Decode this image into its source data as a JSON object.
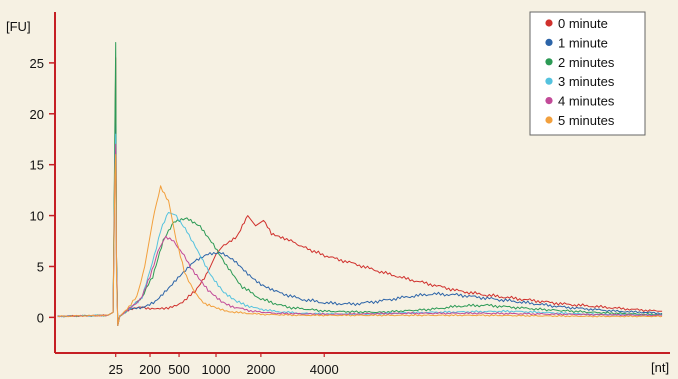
{
  "chart_data": {
    "type": "line",
    "title": "",
    "ylabel": "[FU]",
    "xlabel": "[nt]",
    "ylim": [
      -3.5,
      30
    ],
    "xlim": [
      -2.3,
      21
    ],
    "y_ticks": [
      0,
      5,
      10,
      15,
      20,
      25
    ],
    "x_ticks": [
      {
        "label": "25",
        "pos": 0.0
      },
      {
        "label": "200",
        "pos": 1.3
      },
      {
        "label": "500",
        "pos": 2.4
      },
      {
        "label": "1000",
        "pos": 3.8
      },
      {
        "label": "2000",
        "pos": 5.5
      },
      {
        "label": "4000",
        "pos": 7.9
      }
    ],
    "grid": false,
    "legend": "top-right",
    "series": [
      {
        "name": "0 minute",
        "color": "#d0312d",
        "x": [
          -2.2,
          -0.3,
          -0.1,
          -0.03,
          0.0,
          0.03,
          0.08,
          0.15,
          0.4,
          1.0,
          1.6,
          2.3,
          3.0,
          3.5,
          3.8,
          4.1,
          4.6,
          5.0,
          5.3,
          5.6,
          5.9,
          6.4,
          7.2,
          8.0,
          9.0,
          10.0,
          11.0,
          12.0,
          13.0,
          14.0,
          15.0,
          16.0,
          17.0,
          18.0,
          19.0,
          20.0,
          20.7
        ],
        "y": [
          0.1,
          0.2,
          0.5,
          17,
          25.5,
          6,
          -0.8,
          0.1,
          0.7,
          1.0,
          0.8,
          1.1,
          2.5,
          4.5,
          6.2,
          7.0,
          8.0,
          10.0,
          9.0,
          9.5,
          8.2,
          7.8,
          6.8,
          6.0,
          5.3,
          4.5,
          3.8,
          3.2,
          2.6,
          2.2,
          1.9,
          1.6,
          1.3,
          1.1,
          0.9,
          0.7,
          0.6
        ]
      },
      {
        "name": "1 minute",
        "color": "#2c64a8",
        "x": [
          -2.2,
          -0.3,
          -0.1,
          -0.03,
          0.0,
          0.03,
          0.08,
          0.15,
          0.5,
          1.0,
          1.5,
          2.0,
          2.5,
          3.0,
          3.5,
          4.0,
          4.5,
          5.0,
          5.5,
          6.0,
          7.0,
          8.0,
          9.0,
          10.0,
          11.0,
          12.0,
          13.0,
          14.0,
          15.0,
          16.0,
          17.0,
          18.0,
          19.0,
          20.0,
          20.7
        ],
        "y": [
          0.1,
          0.2,
          0.5,
          16,
          19,
          5,
          -0.8,
          0.1,
          0.8,
          1.0,
          1.6,
          2.8,
          4.2,
          5.6,
          6.3,
          6.3,
          5.5,
          4.3,
          3.3,
          2.6,
          1.8,
          1.4,
          1.3,
          1.6,
          2.0,
          2.3,
          2.2,
          1.9,
          1.6,
          1.3,
          1.0,
          0.8,
          0.6,
          0.5,
          0.4
        ]
      },
      {
        "name": "2 minutes",
        "color": "#2c9a55",
        "x": [
          -2.2,
          -0.3,
          -0.1,
          -0.03,
          0.0,
          0.03,
          0.08,
          0.15,
          0.6,
          1.0,
          1.4,
          1.8,
          2.2,
          2.7,
          3.2,
          3.7,
          4.2,
          4.8,
          5.5,
          6.5,
          8.0,
          10.0,
          12.0,
          13.0,
          14.0,
          15.0,
          16.0,
          18.0,
          20.0,
          20.7
        ],
        "y": [
          0.1,
          0.2,
          0.5,
          19,
          27,
          6,
          -0.8,
          0.1,
          1.0,
          2.0,
          4.0,
          7.5,
          9.3,
          9.7,
          9.0,
          7.2,
          5.0,
          3.0,
          1.8,
          1.0,
          0.6,
          0.5,
          0.8,
          1.1,
          1.2,
          1.0,
          0.8,
          0.5,
          0.3,
          0.3
        ]
      },
      {
        "name": "3 minutes",
        "color": "#54c2de",
        "x": [
          -2.2,
          -0.3,
          -0.1,
          -0.03,
          0.0,
          0.03,
          0.08,
          0.15,
          0.6,
          1.0,
          1.3,
          1.7,
          2.0,
          2.3,
          2.7,
          3.1,
          3.6,
          4.1,
          4.6,
          5.3,
          6.0,
          7.0,
          9.0,
          12.0,
          15.0,
          18.0,
          20.7
        ],
        "y": [
          0.1,
          0.2,
          0.5,
          15,
          18,
          5,
          -0.8,
          0.1,
          1.0,
          2.0,
          4.5,
          8.5,
          10.3,
          10.0,
          8.5,
          6.5,
          4.2,
          2.5,
          1.5,
          0.9,
          0.6,
          0.4,
          0.3,
          0.5,
          0.6,
          0.3,
          0.2
        ]
      },
      {
        "name": "4 minutes",
        "color": "#c24a98",
        "x": [
          -2.2,
          -0.3,
          -0.1,
          -0.03,
          0.0,
          0.03,
          0.08,
          0.15,
          0.6,
          1.0,
          1.3,
          1.6,
          1.9,
          2.2,
          2.6,
          3.0,
          3.5,
          4.0,
          4.5,
          5.2,
          6.0,
          8.0,
          11.0,
          14.0,
          17.0,
          20.7
        ],
        "y": [
          0.1,
          0.2,
          0.5,
          14,
          17,
          5,
          -0.8,
          0.1,
          1.0,
          2.0,
          4.0,
          6.5,
          7.8,
          7.5,
          6.0,
          4.3,
          2.6,
          1.6,
          1.0,
          0.6,
          0.4,
          0.3,
          0.4,
          0.4,
          0.3,
          0.2
        ]
      },
      {
        "name": "5 minutes",
        "color": "#f2a03d",
        "x": [
          -2.2,
          -0.3,
          -0.1,
          -0.03,
          0.0,
          0.03,
          0.08,
          0.15,
          0.5,
          0.8,
          1.1,
          1.4,
          1.7,
          2.0,
          2.3,
          2.6,
          3.0,
          3.4,
          3.9,
          4.5,
          5.5,
          7.0,
          10.0,
          14.0,
          18.0,
          20.7
        ],
        "y": [
          0.1,
          0.2,
          0.5,
          14,
          16,
          4,
          -0.8,
          0.1,
          1.0,
          2.0,
          5.0,
          9.5,
          12.8,
          11.5,
          7.5,
          4.5,
          2.4,
          1.3,
          0.8,
          0.5,
          0.3,
          0.2,
          0.2,
          0.2,
          0.1,
          0.1
        ]
      }
    ]
  }
}
